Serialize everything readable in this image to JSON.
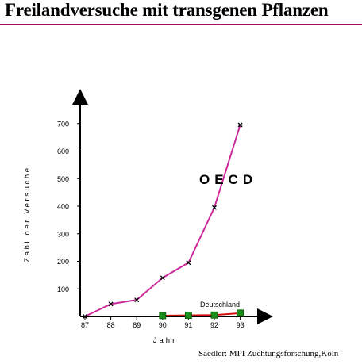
{
  "page": {
    "title": "Freilandversuche mit transgenen Pflanzen",
    "source": "Saedler: MPI Züchtungsforschung,Köln"
  },
  "colors": {
    "title_rule": "#a01060",
    "oecd_line": "#cc2a9a",
    "deutschland_line": "#d01010",
    "deutschland_marker": "#1a8a1a",
    "axis": "#000000"
  },
  "chart_data": {
    "type": "line",
    "x": [
      87,
      88,
      89,
      90,
      91,
      92,
      93
    ],
    "tick_labels_x": [
      "87",
      "88",
      "89",
      "90",
      "91",
      "92",
      "93"
    ],
    "tick_labels_y": [
      "100",
      "200",
      "300",
      "400",
      "500",
      "600",
      "700"
    ],
    "xlabel": "Jahr",
    "ylabel": "Zahl der Versuche",
    "ylim": [
      0,
      800
    ],
    "xlim": [
      87,
      94
    ],
    "grid": false,
    "series": [
      {
        "name": "OECD",
        "x": [
          87,
          88,
          89,
          90,
          91,
          92,
          93
        ],
        "values": [
          0,
          45,
          60,
          140,
          195,
          395,
          695
        ]
      },
      {
        "name": "Deutschland",
        "x": [
          90,
          91,
          92,
          93
        ],
        "values": [
          3,
          4,
          5,
          12
        ]
      }
    ]
  }
}
